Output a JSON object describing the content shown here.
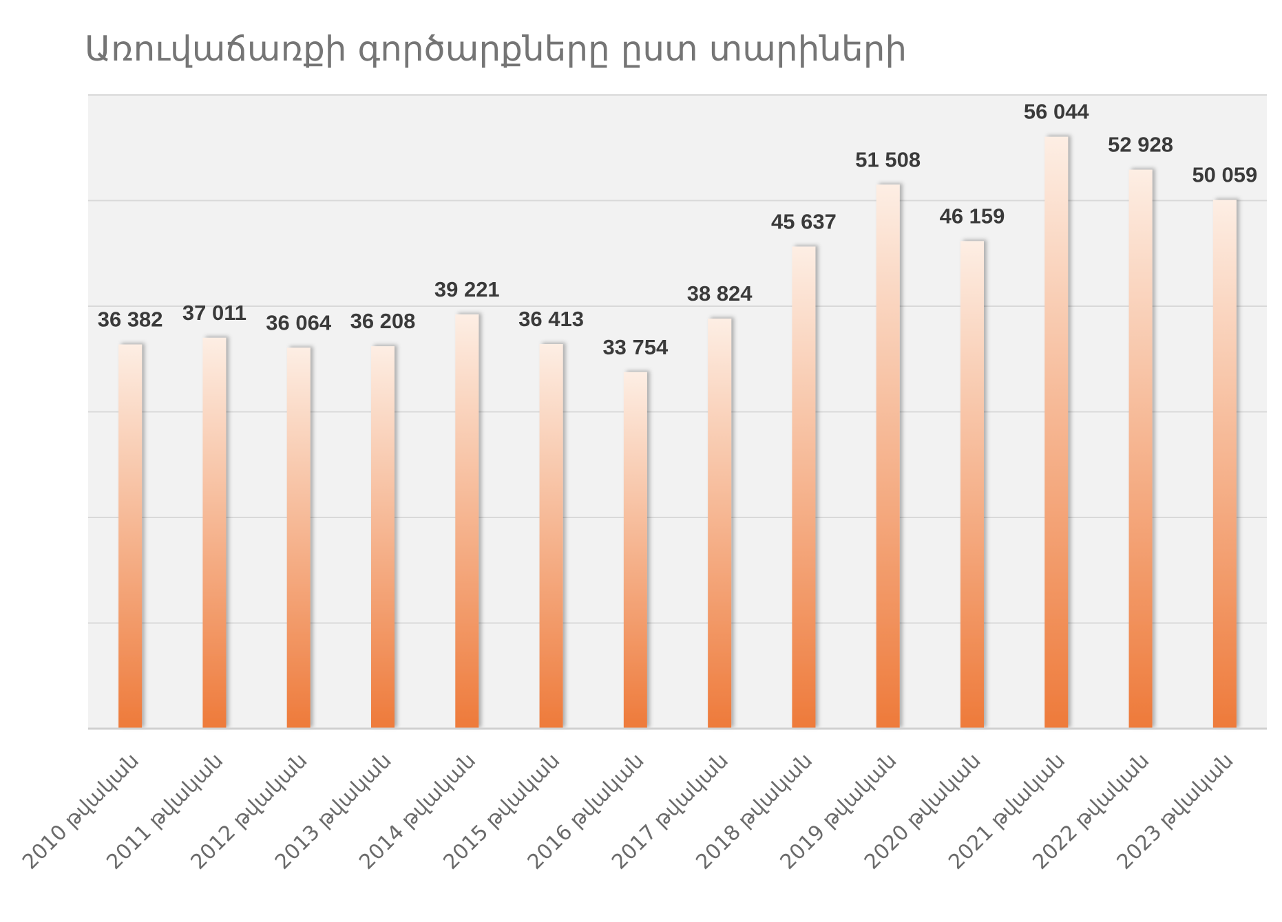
{
  "chart_data": {
    "type": "bar",
    "title": "Առուվաճառքի գործարքները ըստ տարիների",
    "categories": [
      "2010 թվական",
      "2011 թվական",
      "2012 թվական",
      "2013 թվական",
      "2014 թվական",
      "2015 թվական",
      "2016 թվական",
      "2017 թվական",
      "2018 թվական",
      "2019 թվական",
      "2020 թվական",
      "2021 թվական",
      "2022 թվական",
      "2023 թվական"
    ],
    "values": [
      36382,
      37011,
      36064,
      36208,
      39221,
      36413,
      33754,
      38824,
      45637,
      51508,
      46159,
      56044,
      52928,
      50059
    ],
    "data_labels": [
      "36 382",
      "37 011",
      "36 064",
      "36 208",
      "39 221",
      "36 413",
      "33 754",
      "38 824",
      "45 637",
      "51 508",
      "46 159",
      "56 044",
      "52 928",
      "50 059"
    ],
    "ylim": [
      0,
      60000
    ],
    "y_gridlines": [
      10000,
      20000,
      30000,
      40000,
      50000,
      60000
    ],
    "xlabel": "",
    "ylabel": "",
    "grid": true,
    "legend": "none",
    "colors": {
      "bar_top": "#fdeee4",
      "bar_bottom": "#ee7a3a",
      "plot_background": "#f2f2f2",
      "gridline": "#d9d9d9"
    }
  }
}
